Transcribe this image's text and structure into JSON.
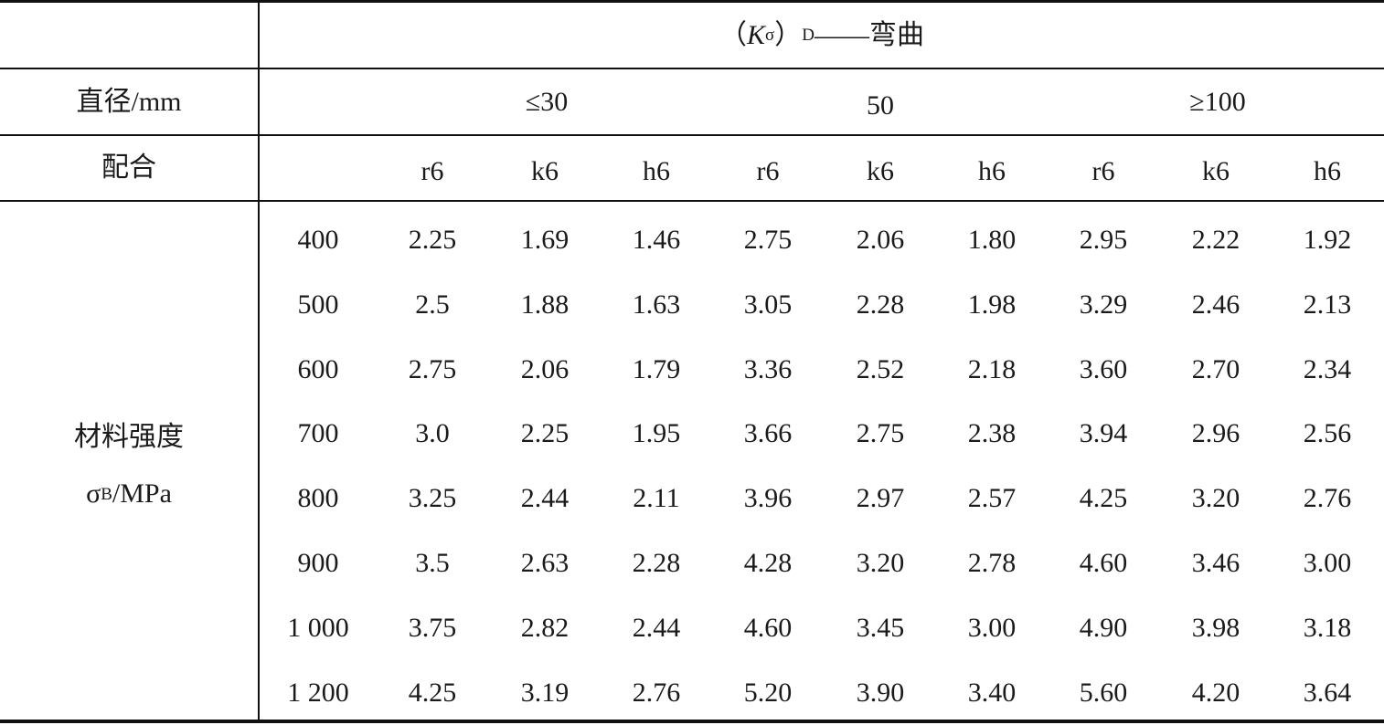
{
  "table": {
    "title": {
      "open_paren": "（",
      "k_letter": "K",
      "k_sub": "σ",
      "close_paren": "）",
      "d_sub": "D",
      "dash_text": "——弯曲"
    },
    "diameter_label": "直径/mm",
    "diameter_groups": [
      "≤30",
      "50",
      "≥100"
    ],
    "fit_label": "配合",
    "fits": [
      "r6",
      "k6",
      "h6",
      "r6",
      "k6",
      "h6",
      "r6",
      "k6",
      "h6"
    ],
    "strength_label_line1": "材料强度",
    "strength_label_sigma": "σ",
    "strength_label_sub": "B",
    "strength_label_unit": "/MPa",
    "rows": [
      {
        "strength": "400",
        "values": [
          "2.25",
          "1.69",
          "1.46",
          "2.75",
          "2.06",
          "1.80",
          "2.95",
          "2.22",
          "1.92"
        ]
      },
      {
        "strength": "500",
        "values": [
          "2.5",
          "1.88",
          "1.63",
          "3.05",
          "2.28",
          "1.98",
          "3.29",
          "2.46",
          "2.13"
        ]
      },
      {
        "strength": "600",
        "values": [
          "2.75",
          "2.06",
          "1.79",
          "3.36",
          "2.52",
          "2.18",
          "3.60",
          "2.70",
          "2.34"
        ]
      },
      {
        "strength": "700",
        "values": [
          "3.0",
          "2.25",
          "1.95",
          "3.66",
          "2.75",
          "2.38",
          "3.94",
          "2.96",
          "2.56"
        ]
      },
      {
        "strength": "800",
        "values": [
          "3.25",
          "2.44",
          "2.11",
          "3.96",
          "2.97",
          "2.57",
          "4.25",
          "3.20",
          "2.76"
        ]
      },
      {
        "strength": "900",
        "values": [
          "3.5",
          "2.63",
          "2.28",
          "4.28",
          "3.20",
          "2.78",
          "4.60",
          "3.46",
          "3.00"
        ]
      },
      {
        "strength": "1 000",
        "values": [
          "3.75",
          "2.82",
          "2.44",
          "4.60",
          "3.45",
          "3.00",
          "4.90",
          "3.98",
          "3.18"
        ]
      },
      {
        "strength": "1 200",
        "values": [
          "4.25",
          "3.19",
          "2.76",
          "5.20",
          "3.90",
          "3.40",
          "5.60",
          "4.20",
          "3.64"
        ]
      }
    ]
  }
}
